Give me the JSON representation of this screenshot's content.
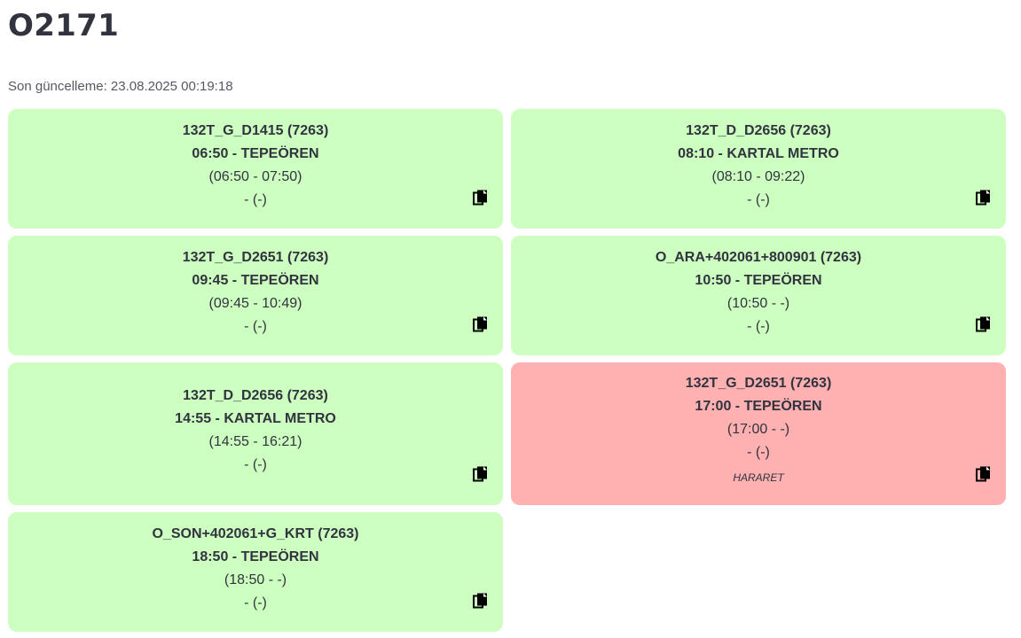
{
  "page": {
    "title": "O2171",
    "last_update": "Son güncelleme: 23.08.2025 00:19:18"
  },
  "cards": [
    {
      "status": "green",
      "trip": "132T_G_D1415 (7263)",
      "departure": "06:50 - TEPEÖREN",
      "times": "(06:50 - 07:50)",
      "actual": "- (-)",
      "note": ""
    },
    {
      "status": "green",
      "trip": "132T_D_D2656 (7263)",
      "departure": "08:10 - KARTAL METRO",
      "times": "(08:10 - 09:22)",
      "actual": "- (-)",
      "note": ""
    },
    {
      "status": "green",
      "trip": "132T_G_D2651 (7263)",
      "departure": "09:45 - TEPEÖREN",
      "times": "(09:45 - 10:49)",
      "actual": "- (-)",
      "note": ""
    },
    {
      "status": "green",
      "trip": "O_ARA+402061+800901 (7263)",
      "departure": "10:50 - TEPEÖREN",
      "times": "(10:50 - -)",
      "actual": "- (-)",
      "note": ""
    },
    {
      "status": "green",
      "trip": "132T_D_D2656 (7263)",
      "departure": "14:55 - KARTAL METRO",
      "times": "(14:55 - 16:21)",
      "actual": "- (-)",
      "note": ""
    },
    {
      "status": "red",
      "trip": "132T_G_D2651 (7263)",
      "departure": "17:00 - TEPEÖREN",
      "times": "(17:00 - -)",
      "actual": "- (-)",
      "note": "HARARET"
    },
    {
      "status": "green",
      "trip": "O_SON+402061+G_KRT (7263)",
      "departure": "18:50 - TEPEÖREN",
      "times": "(18:50 - -)",
      "actual": "- (-)",
      "note": ""
    }
  ],
  "colors": {
    "green_card": "#ccffc0",
    "red_card": "#ffb0b0",
    "text": "#31333f"
  },
  "icons": {
    "copy": "copy-icon"
  }
}
